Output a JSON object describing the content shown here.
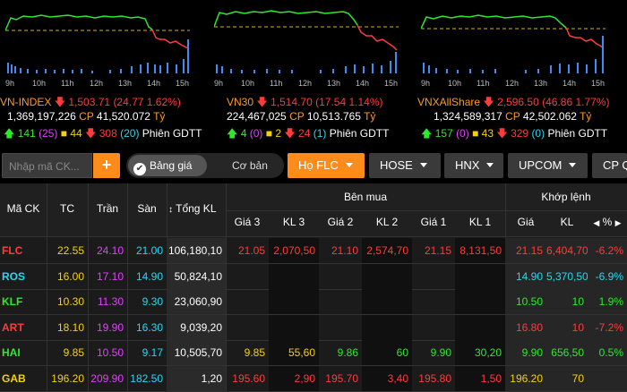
{
  "indices": [
    {
      "name": "VN-INDEX",
      "value": "1,503.71",
      "change": "(24.77 1.62%)",
      "volume": "1,369,197,226",
      "cp_label": "CP",
      "amount": "41,520.072",
      "unit": "Tỷ",
      "up": "141",
      "ceil": "(25)",
      "ref": "44",
      "down": "308",
      "floor": "(20)",
      "session": "Phiên GDTT",
      "hours": [
        "9h",
        "10h",
        "11h",
        "12h",
        "13h",
        "14h",
        "15h"
      ]
    },
    {
      "name": "VN30",
      "value": "1,514.70",
      "change": "(17.54 1.14%)",
      "volume": "224,467,025",
      "cp_label": "CP",
      "amount": "10,513.765",
      "unit": "Tỷ",
      "up": "4",
      "ceil": "(0)",
      "ref": "2",
      "down": "24",
      "floor": "(1)",
      "session": "Phiên GDTT",
      "hours": [
        "9h",
        "10h",
        "11h",
        "12h",
        "13h",
        "14h",
        "15h"
      ]
    },
    {
      "name": "VNXAllShare",
      "value": "2,596.50",
      "change": "(46.86 1.77%)",
      "volume": "1,324,589,317",
      "cp_label": "CP",
      "amount": "42,502.062",
      "unit": "Tỷ",
      "up": "157",
      "ceil": "(0)",
      "ref": "43",
      "down": "329",
      "floor": "(0)",
      "session": "Phiên GDTT",
      "hours": [
        "9h",
        "10h",
        "11h",
        "12h",
        "13h",
        "14h",
        "15h"
      ]
    }
  ],
  "toolbar": {
    "search_placeholder": "Nhập mã CK...",
    "plus": "+",
    "view_active": "Bảng giá",
    "view_other": "Cơ bản",
    "tabs": [
      "Họ FLC",
      "HOSE",
      "HNX",
      "UPCOM",
      "CP Q"
    ]
  },
  "table": {
    "headers": {
      "symbol": "Mã CK",
      "ref": "TC",
      "ceil": "Trần",
      "floor": "Sàn",
      "total": "Tổng KL",
      "bid_group": "Bên mua",
      "bid": [
        "Giá 3",
        "KL 3",
        "Giá 2",
        "KL 2",
        "Giá 1",
        "KL 1"
      ],
      "match_group": "Khớp lệnh",
      "match": [
        "Giá",
        "KL",
        "%"
      ]
    },
    "rows": [
      {
        "sym": "FLC",
        "tc": "22.55",
        "tran": "24.10",
        "san": "21.00",
        "tong": "106,180,10",
        "g3": "21.05",
        "kl3": "2,070,50",
        "g2": "21.10",
        "kl2": "2,574,70",
        "g1": "21.15",
        "kl1": "8,131,50",
        "gia": "21.15",
        "kl": "6,404,70",
        "pct": "-6.2%",
        "color": "#ff3b3b"
      },
      {
        "sym": "ROS",
        "tc": "16.00",
        "tran": "17.10",
        "san": "14.90",
        "tong": "50,824,10",
        "g3": "",
        "kl3": "",
        "g2": "",
        "kl2": "",
        "g1": "",
        "kl1": "",
        "gia": "14.90",
        "kl": "5,370,50",
        "pct": "-6.9%",
        "color": "#27d7f0"
      },
      {
        "sym": "KLF",
        "tc": "10.30",
        "tran": "11.30",
        "san": "9.30",
        "tong": "23,060,90",
        "g3": "",
        "kl3": "",
        "g2": "",
        "kl2": "",
        "g1": "",
        "kl1": "",
        "gia": "10.50",
        "kl": "10",
        "pct": "1.9%",
        "color": "#2ee82e"
      },
      {
        "sym": "ART",
        "tc": "18.10",
        "tran": "19.90",
        "san": "16.30",
        "tong": "9,039,20",
        "g3": "",
        "kl3": "",
        "g2": "",
        "kl2": "",
        "g1": "",
        "kl1": "",
        "gia": "16.80",
        "kl": "10",
        "pct": "-7.2%",
        "color": "#ff3b3b"
      },
      {
        "sym": "HAI",
        "tc": "9.85",
        "tran": "10.50",
        "san": "9.17",
        "tong": "10,505,70",
        "g3": "9.85",
        "kl3": "55,60",
        "g2": "9.86",
        "kl2": "60",
        "g1": "9.90",
        "kl1": "30,20",
        "gia": "9.90",
        "kl": "656,50",
        "pct": "0.5%",
        "color": "#2ee82e"
      },
      {
        "sym": "GAB",
        "tc": "196.20",
        "tran": "209.90",
        "san": "182.50",
        "tong": "1,20",
        "g3": "195.60",
        "kl3": "2,90",
        "g2": "195.70",
        "kl2": "3,40",
        "g1": "195.80",
        "kl1": "1,50",
        "gia": "196.20",
        "kl": "70",
        "pct": "",
        "color": "#f5d10a"
      }
    ],
    "bid_colors": {
      "FLC": [
        "#ff3b3b",
        "#ff3b3b",
        "#ff3b3b",
        "#ff3b3b",
        "#ff3b3b",
        "#ff3b3b"
      ],
      "HAI": [
        "#f5d10a",
        "#f5d10a",
        "#2ee82e",
        "#2ee82e",
        "#2ee82e",
        "#2ee82e"
      ],
      "GAB": [
        "#ff3b3b",
        "#ff3b3b",
        "#ff3b3b",
        "#ff3b3b",
        "#ff3b3b",
        "#ff3b3b"
      ]
    }
  },
  "colors": {
    "accent": "#ff8c1a",
    "up": "#2ee82e",
    "down": "#ff3b3b",
    "ref": "#f5d10a",
    "ceil": "#e040fb",
    "floor": "#27d7f0"
  }
}
